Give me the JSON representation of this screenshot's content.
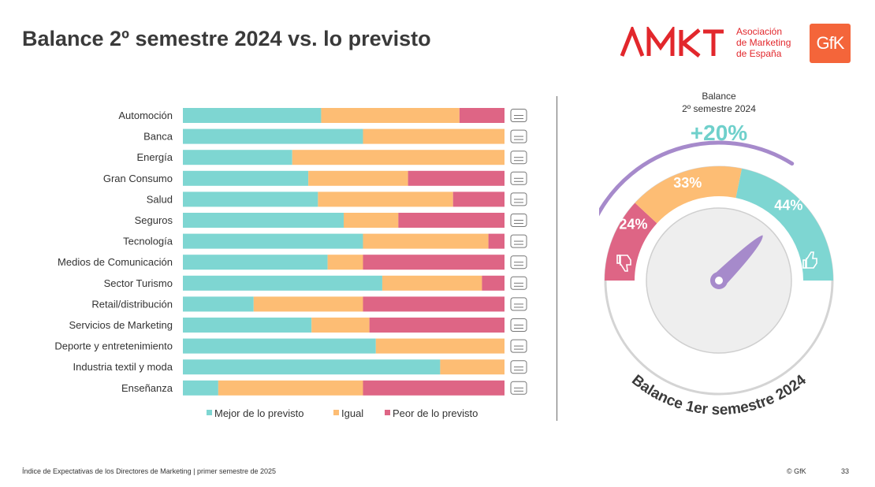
{
  "page": {
    "title": "Balance 2º semestre 2024 vs. lo previsto",
    "footer_text": "Índice de Expectativas de los Directores de Marketing |  primer semestre de 2025",
    "copyright": "© GfK",
    "page_number": "33"
  },
  "logos": {
    "amkt_wordmark": "AMKT",
    "amkt_text": [
      "Asociación",
      "de Marketing",
      "de España"
    ],
    "gfk": "GfK"
  },
  "colors": {
    "mejor": "#7ed6d2",
    "igual": "#fdbd74",
    "peor": "#de6585",
    "gauge_purple": "#a68acb",
    "balance_teal": "#6fd0cb"
  },
  "chart_data": [
    {
      "type": "bar",
      "orientation": "horizontal-stacked-100",
      "categories": [
        "Automoción",
        "Banca",
        "Energía",
        "Gran Consumo",
        "Salud",
        "Seguros",
        "Tecnología",
        "Medios de Comunicación",
        "Sector Turismo",
        "Retail/distribución",
        "Servicios de Marketing",
        "Deporte y entretenimiento",
        "Industria textil y moda",
        "Enseñanza"
      ],
      "category_icons": [
        "car-icon",
        "bank-icon",
        "power-tower-icon",
        "bottle-icon",
        "pills-icon",
        "shield-icon",
        "chip-icon",
        "media-icon",
        "plane-icon",
        "cart-icon",
        "phone-icon",
        "ball-icon",
        "shoe-icon",
        "classroom-icon"
      ],
      "series": [
        {
          "name": "Mejor de lo previsto",
          "values": [
            43,
            56,
            34,
            39,
            42,
            50,
            56,
            45,
            62,
            22,
            40,
            60,
            80,
            11
          ]
        },
        {
          "name": "Igual",
          "values": [
            43,
            44,
            66,
            31,
            42,
            17,
            39,
            11,
            31,
            34,
            18,
            40,
            20,
            45
          ]
        },
        {
          "name": "Peor de lo previsto",
          "values": [
            14,
            0,
            0,
            30,
            16,
            33,
            5,
            44,
            7,
            44,
            42,
            0,
            0,
            44
          ]
        }
      ],
      "xlim": [
        0,
        100
      ],
      "legend_position": "bottom"
    },
    {
      "type": "pie",
      "shape": "gauge",
      "top_label": [
        "Balance",
        "2º  semestre 2024"
      ],
      "balance_value": "+20%",
      "segments": [
        {
          "label": "24%",
          "value": 24,
          "icon": "thumbs-down-icon"
        },
        {
          "label": "33%",
          "value": 33
        },
        {
          "label": "44%",
          "value": 44,
          "icon": "thumbs-up-icon"
        }
      ],
      "arc_caption": "Balance 1er semestre 2024"
    }
  ]
}
